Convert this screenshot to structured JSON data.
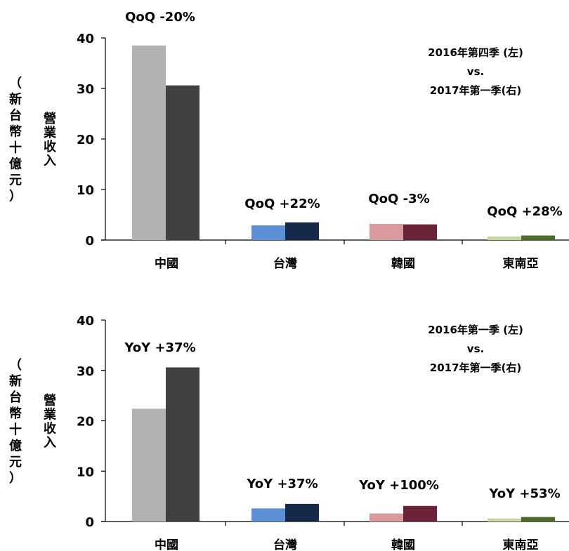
{
  "chart_data": [
    {
      "type": "bar",
      "categories": [
        "中國",
        "台灣",
        "韓國",
        "東南亞"
      ],
      "series": [
        {
          "values": [
            38.5,
            2.9,
            3.2,
            0.7
          ]
        },
        {
          "values": [
            30.6,
            3.5,
            3.1,
            0.9
          ]
        }
      ],
      "ylabel_outer": "（新台幣十億元）",
      "ylabel_inner": "營業收入",
      "ylim": [
        0,
        40
      ],
      "yticks": [
        "0",
        "10",
        "20",
        "30",
        "40"
      ],
      "annotations": [
        "QoQ -20%",
        "QoQ +22%",
        "QoQ -3%",
        "QoQ +28%"
      ],
      "legend_lines": [
        "2016年第四季 (左)",
        "vs.",
        "2017年第一季(右)"
      ],
      "colors": {
        "left": [
          "#b2b2b2",
          "#5b8fd6",
          "#d99a9e",
          "#c6d89c"
        ],
        "right": [
          "#404040",
          "#16294a",
          "#6b2437",
          "#4e6a28"
        ]
      }
    },
    {
      "type": "bar",
      "categories": [
        "中國",
        "台灣",
        "韓國",
        "東南亞"
      ],
      "series": [
        {
          "values": [
            22.4,
            2.6,
            1.6,
            0.6
          ]
        },
        {
          "values": [
            30.6,
            3.5,
            3.1,
            0.9
          ]
        }
      ],
      "ylabel_outer": "（新台幣十億元）",
      "ylabel_inner": "營業收入",
      "ylim": [
        0,
        40
      ],
      "yticks": [
        "0",
        "10",
        "20",
        "30",
        "40"
      ],
      "annotations": [
        "YoY +37%",
        "YoY +37%",
        "YoY +100%",
        "YoY +53%"
      ],
      "legend_lines": [
        "2016年第一季 (左)",
        "vs.",
        "2017年第一季(右)"
      ],
      "colors": {
        "left": [
          "#b2b2b2",
          "#5b8fd6",
          "#d99a9e",
          "#c6d89c"
        ],
        "right": [
          "#404040",
          "#16294a",
          "#6b2437",
          "#4e6a28"
        ]
      }
    }
  ]
}
